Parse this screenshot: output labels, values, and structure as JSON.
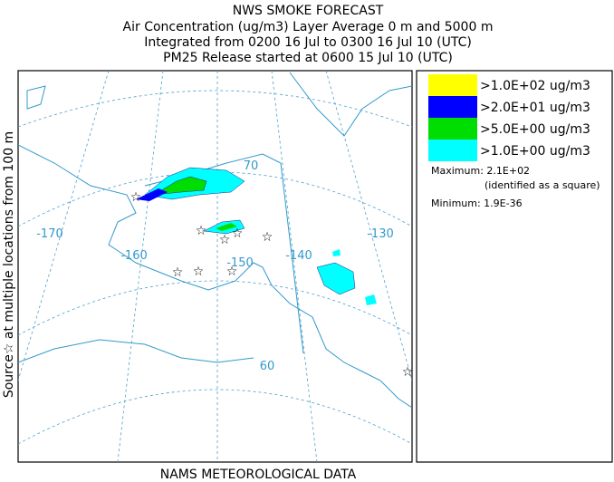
{
  "header": {
    "title": "NWS SMOKE FORECAST",
    "lines": [
      "Air Concentration (ug/m3) Layer Average    0 m and  5000 m",
      "Integrated from 0200 16 Jul to 0300 16 Jul 10 (UTC)",
      "PM25 Release started at 0600 15 Jul 10 (UTC)"
    ]
  },
  "side_label": "Source☆ at multiple locations   from   100 m",
  "footer": "NAMS METEOROLOGICAL DATA",
  "legend": {
    "items": [
      {
        "label": ">1.0E+02 ug/m3",
        "color": "#ffff00"
      },
      {
        "label": ">2.0E+01 ug/m3",
        "color": "#0000ff"
      },
      {
        "label": ">5.0E+00 ug/m3",
        "color": "#00dd00"
      },
      {
        "label": ">1.0E+00 ug/m3",
        "color": "#00ffff"
      }
    ],
    "maximum": "Maximum: 2.1E+02",
    "max_note": "(identified as a square)",
    "minimum": "Minimum: 1.9E-36"
  },
  "map": {
    "labels": [
      "-170",
      "-160",
      "-150",
      "-140",
      "-130",
      "70",
      "60"
    ]
  }
}
